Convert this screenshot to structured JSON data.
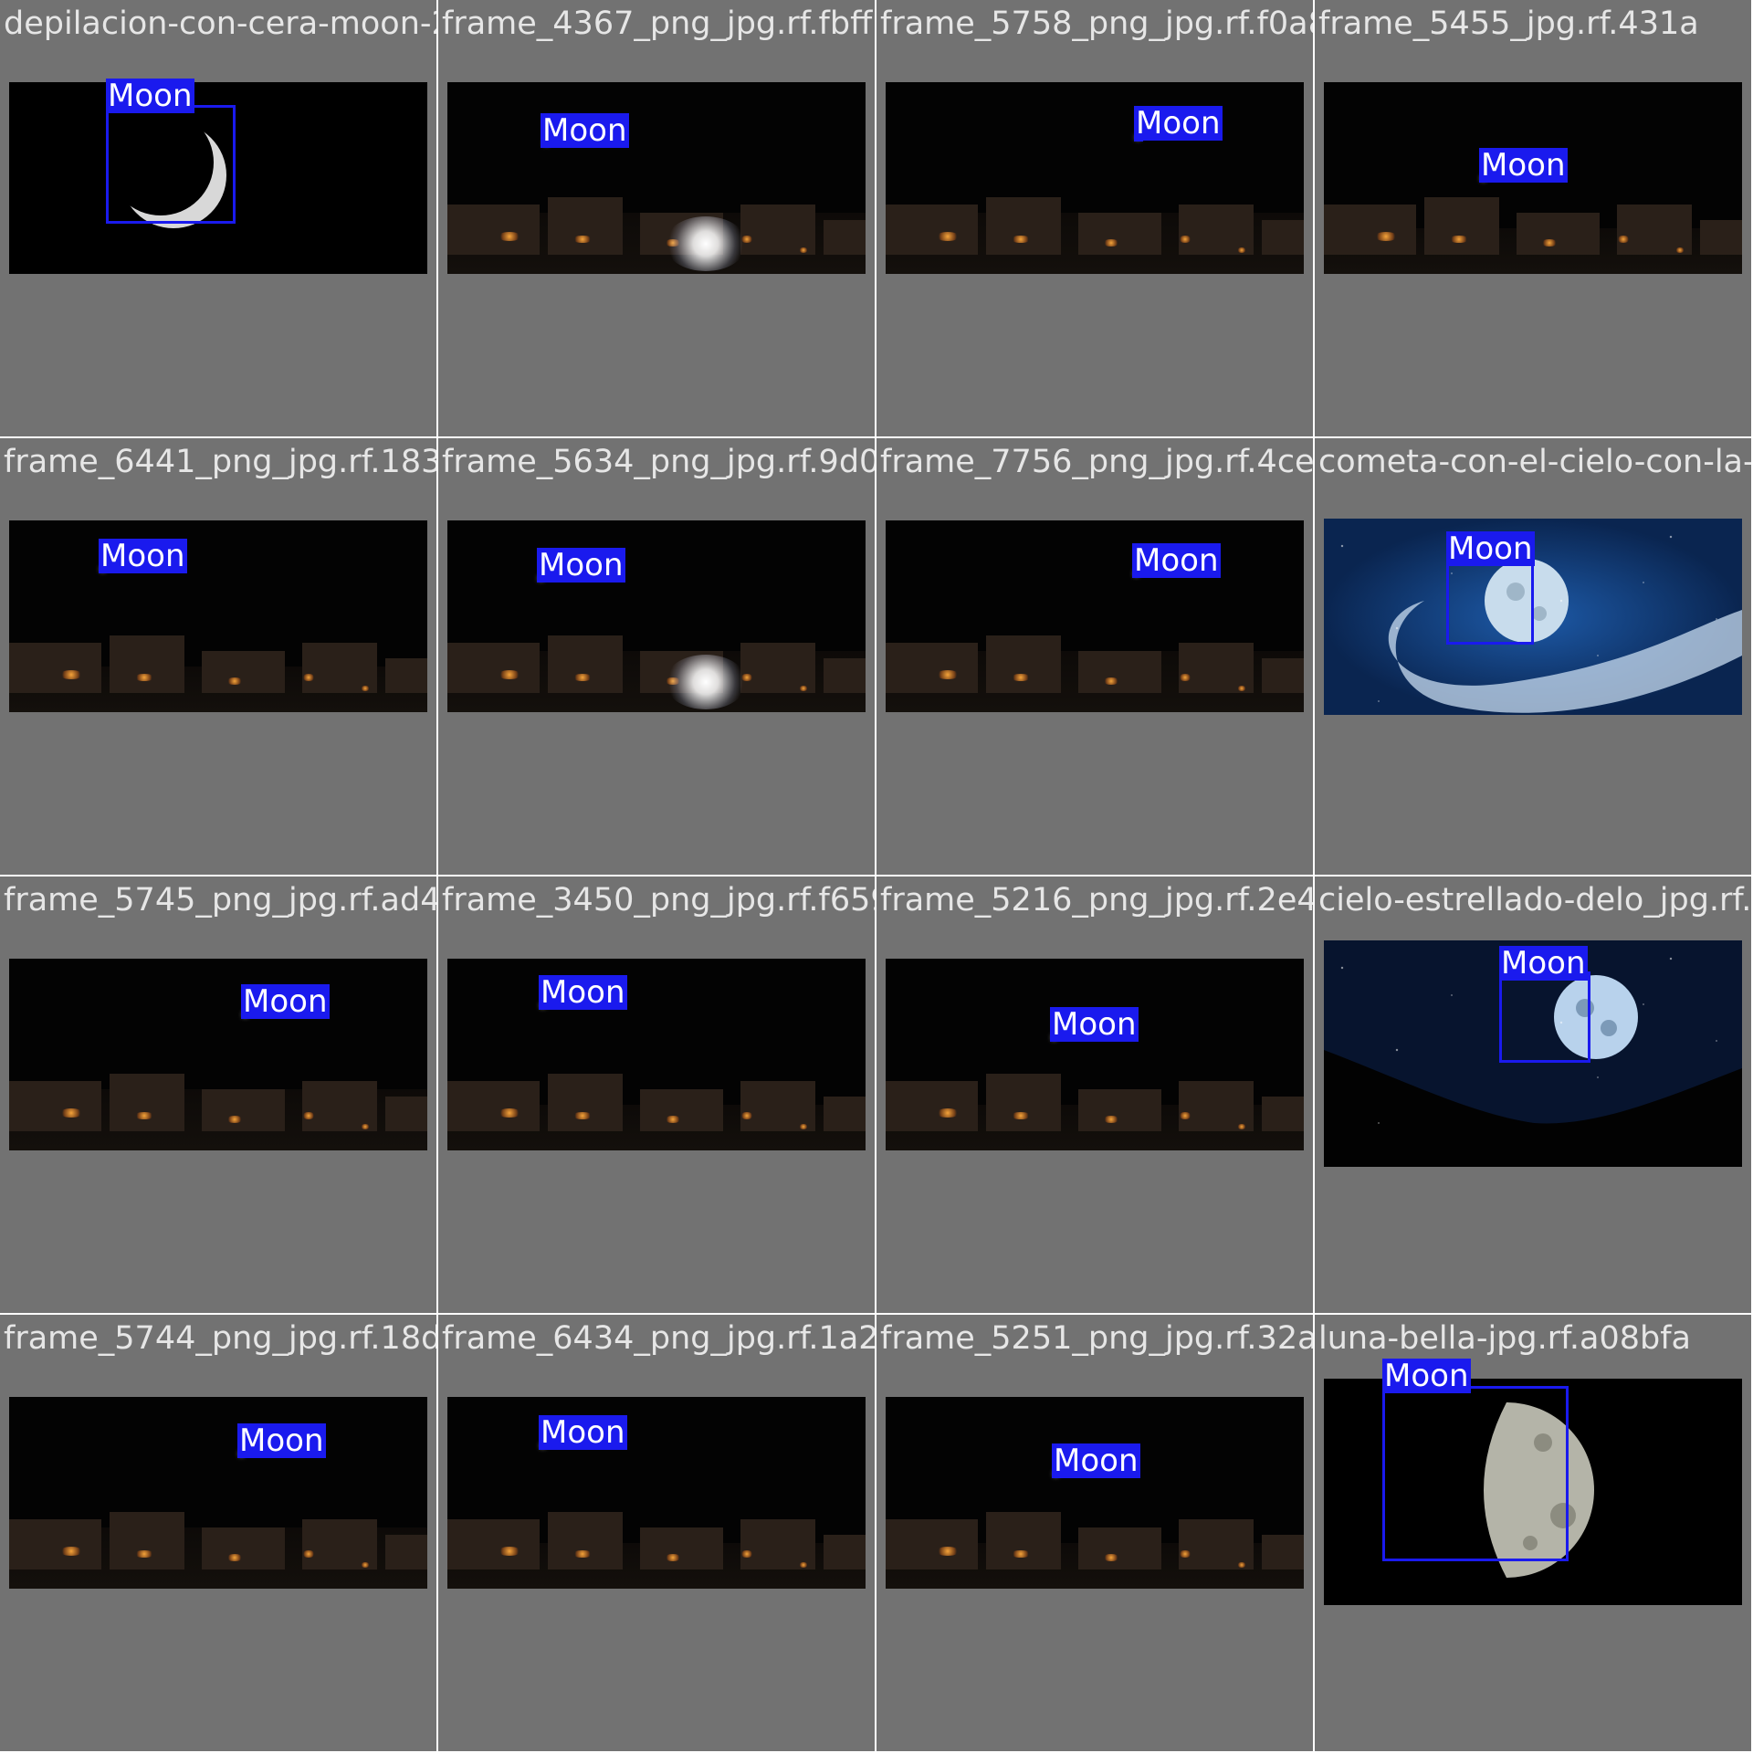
{
  "grid": {
    "tiles": [
      {
        "filename": "depilacion-con-cera-moon-2-frame_4367_png_jpg.rf.fbff789f1fcf0354_png_jpg.rf.f0a8fa8be2d4500e_jpg.rf.431a",
        "label": "Moon",
        "kind": "crescent"
      },
      {
        "filename": "frame_4367_png_jpg.rf.fbff789f1fcf0354",
        "label": "Moon",
        "kind": "street-glare"
      },
      {
        "filename": "frame_5758_png_jpg.rf.f0a8fa8be2d4500e",
        "label": "Moon",
        "kind": "street"
      },
      {
        "filename": "frame_5455_jpg.rf.431a",
        "label": "Moon",
        "kind": "street-dark"
      },
      {
        "filename": "frame_6441_png_jpg.rf.1830f082eb0637e722a_jpg.rf.9d0ef4a9e7c756c4ce4_jpg.rf.4ce62ce25176-el-cielo-con-la-lu",
        "label": "Moon",
        "kind": "street-dark"
      },
      {
        "filename": "frame_5634_png_jpg.rf.9d0ef4a9e7c756c4ce4",
        "label": "Moon",
        "kind": "street-glare"
      },
      {
        "filename": "frame_7756_png_jpg.rf.4ce62ce25176",
        "label": "Moon",
        "kind": "street"
      },
      {
        "filename": "cometa-con-el-cielo-con-la-lu",
        "label": "Moon",
        "kind": "comet"
      },
      {
        "filename": "frame_5745_png_jpg.rf.ad47f92035f4550ff57_jpg.rf.f659b0fb0a5216ada4_jpg.rf.2e40c5c75fd7d9c6delo_jpg.rf.3",
        "label": "Moon",
        "kind": "street"
      },
      {
        "filename": "frame_3450_png_jpg.rf.f659b0fb0a5216ada4",
        "label": "Moon",
        "kind": "street-dark"
      },
      {
        "filename": "frame_5216_png_jpg.rf.2e40c5c75fd7d9c6",
        "label": "Moon",
        "kind": "street-dark"
      },
      {
        "filename": "cielo-estrellado-delo_jpg.rf.3",
        "label": "Moon",
        "kind": "fullmoon-mountain"
      },
      {
        "filename": "frame_5744_png_jpg.rf.18d1f6a066a2434430a_jpg.rf.1a2bfa8d7ed42510620_jpg.rf.32ae55be1b8b052a9d_jpg.rf.a08bfa",
        "label": "Moon",
        "kind": "street"
      },
      {
        "filename": "frame_6434_png_jpg.rf.1a2bfa8d7ed42510620",
        "label": "Moon",
        "kind": "street-dark"
      },
      {
        "filename": "frame_5251_png_jpg.rf.32ae55be1b8b052a9d",
        "label": "Moon",
        "kind": "street-dark"
      },
      {
        "filename": "luna-bella-jpg.rf.a08bfa",
        "label": "Moon",
        "kind": "halfmoon"
      }
    ]
  },
  "colors": {
    "panel_bg": "#727272",
    "bbox": "#1a1aee",
    "label_text": "#ffffff",
    "filename_text": "#e6e6e6"
  }
}
